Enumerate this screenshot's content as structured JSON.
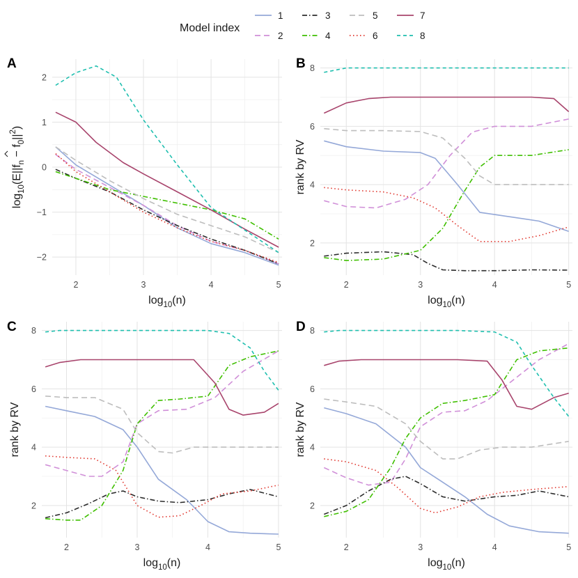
{
  "legend": {
    "title": "Model index",
    "items": [
      {
        "label": "1",
        "color": "#94a8d8",
        "dash": "solid"
      },
      {
        "label": "2",
        "color": "#d08fd8",
        "dash": "longdash"
      },
      {
        "label": "3",
        "color": "#2b2b2b",
        "dash": "dotdash"
      },
      {
        "label": "4",
        "color": "#3fbf00",
        "dash": "dotdash"
      },
      {
        "label": "5",
        "color": "#bdbdbd",
        "dash": "longdash"
      },
      {
        "label": "6",
        "color": "#e0332a",
        "dash": "dotted"
      },
      {
        "label": "7",
        "color": "#a8446c",
        "dash": "solid"
      },
      {
        "label": "8",
        "color": "#1fbfaf",
        "dash": "dashed"
      }
    ]
  },
  "chart_data": [
    {
      "tag": "A",
      "type": "line",
      "xlabel": "log10(n)",
      "ylabel": "log10(E||f̂n − f0||²)",
      "xlim": [
        1.65,
        5.05
      ],
      "ylim": [
        -2.4,
        2.4
      ],
      "xticks": [
        2,
        3,
        4,
        5
      ],
      "yticks": [
        -2,
        -1,
        0,
        1,
        2
      ],
      "grid": true,
      "series": [
        {
          "name": "1",
          "x": [
            1.7,
            2,
            2.5,
            3,
            3.5,
            4,
            4.5,
            5
          ],
          "y": [
            0.45,
            0.05,
            -0.4,
            -0.85,
            -1.35,
            -1.7,
            -1.9,
            -2.18
          ]
        },
        {
          "name": "2",
          "x": [
            1.7,
            2,
            2.5,
            3,
            3.5,
            4,
            4.5,
            5
          ],
          "y": [
            0.28,
            -0.05,
            -0.45,
            -0.85,
            -1.3,
            -1.65,
            -1.85,
            -2.15
          ]
        },
        {
          "name": "3",
          "x": [
            1.7,
            2,
            2.5,
            3,
            3.5,
            4,
            4.5,
            5
          ],
          "y": [
            -0.05,
            -0.25,
            -0.55,
            -0.95,
            -1.3,
            -1.6,
            -1.85,
            -2.15
          ]
        },
        {
          "name": "4",
          "x": [
            1.7,
            2,
            2.5,
            3,
            3.5,
            4,
            4.5,
            5
          ],
          "y": [
            -0.1,
            -0.25,
            -0.5,
            -0.65,
            -0.8,
            -0.95,
            -1.15,
            -1.6
          ]
        },
        {
          "name": "5",
          "x": [
            1.7,
            2,
            2.5,
            3,
            3.5,
            4,
            4.5,
            5
          ],
          "y": [
            0.45,
            0.15,
            -0.3,
            -0.7,
            -1.05,
            -1.3,
            -1.55,
            -1.9
          ]
        },
        {
          "name": "6",
          "x": [
            1.7,
            2,
            2.5,
            3,
            3.5,
            4,
            4.5,
            5
          ],
          "y": [
            0.3,
            -0.1,
            -0.55,
            -1.0,
            -1.35,
            -1.65,
            -1.85,
            -2.12
          ]
        },
        {
          "name": "7",
          "x": [
            1.7,
            2,
            2.3,
            2.7,
            3,
            3.5,
            4,
            4.5,
            5
          ],
          "y": [
            1.22,
            1.0,
            0.55,
            0.1,
            -0.15,
            -0.55,
            -0.95,
            -1.38,
            -1.78
          ]
        },
        {
          "name": "8",
          "x": [
            1.7,
            2,
            2.3,
            2.6,
            3,
            3.5,
            4,
            4.5,
            5
          ],
          "y": [
            1.82,
            2.1,
            2.25,
            2.0,
            1.05,
            0.05,
            -0.9,
            -1.4,
            -1.9
          ]
        }
      ]
    },
    {
      "tag": "B",
      "type": "line",
      "xlabel": "log10(n)",
      "ylabel": "rank by RV",
      "xlim": [
        1.65,
        5.05
      ],
      "ylim": [
        0.9,
        8.3
      ],
      "xticks": [
        2,
        3,
        4,
        5
      ],
      "yticks": [
        2,
        4,
        6,
        8
      ],
      "grid": true,
      "series": [
        {
          "name": "1",
          "x": [
            1.7,
            2,
            2.5,
            3,
            3.2,
            3.5,
            3.8,
            4.2,
            4.6,
            5
          ],
          "y": [
            5.5,
            5.3,
            5.15,
            5.1,
            4.9,
            4.0,
            3.05,
            2.9,
            2.75,
            2.4
          ]
        },
        {
          "name": "2",
          "x": [
            1.7,
            2,
            2.4,
            2.8,
            3.1,
            3.4,
            3.7,
            4,
            4.5,
            5
          ],
          "y": [
            3.45,
            3.25,
            3.2,
            3.5,
            4.0,
            5.0,
            5.8,
            6.0,
            6.0,
            6.25
          ]
        },
        {
          "name": "3",
          "x": [
            1.7,
            2,
            2.5,
            2.9,
            3.1,
            3.3,
            3.6,
            4,
            4.5,
            5
          ],
          "y": [
            1.55,
            1.65,
            1.7,
            1.6,
            1.3,
            1.08,
            1.05,
            1.05,
            1.08,
            1.07
          ]
        },
        {
          "name": "4",
          "x": [
            1.7,
            2,
            2.5,
            3,
            3.3,
            3.6,
            3.8,
            4,
            4.5,
            5
          ],
          "y": [
            1.5,
            1.4,
            1.45,
            1.75,
            2.5,
            3.8,
            4.6,
            5.0,
            5.0,
            5.2
          ]
        },
        {
          "name": "5",
          "x": [
            1.7,
            2,
            2.5,
            3,
            3.3,
            3.6,
            3.8,
            4,
            4.5,
            5
          ],
          "y": [
            5.92,
            5.85,
            5.85,
            5.82,
            5.6,
            4.9,
            4.3,
            4.0,
            4.0,
            4.0
          ]
        },
        {
          "name": "6",
          "x": [
            1.7,
            2,
            2.5,
            2.9,
            3.2,
            3.5,
            3.8,
            4.2,
            4.6,
            5
          ],
          "y": [
            3.9,
            3.82,
            3.75,
            3.55,
            3.2,
            2.6,
            2.05,
            2.05,
            2.25,
            2.55
          ]
        },
        {
          "name": "7",
          "x": [
            1.7,
            2,
            2.3,
            2.6,
            3,
            3.5,
            4,
            4.5,
            4.8,
            5
          ],
          "y": [
            6.45,
            6.8,
            6.95,
            7.0,
            7.0,
            7.0,
            7.0,
            7.0,
            6.95,
            6.5
          ]
        },
        {
          "name": "8",
          "x": [
            1.7,
            1.9,
            2,
            2.5,
            3,
            3.5,
            4,
            4.5,
            5
          ],
          "y": [
            7.85,
            7.95,
            8.0,
            8.0,
            8.0,
            8.0,
            8.0,
            8.0,
            8.0
          ]
        }
      ]
    },
    {
      "tag": "C",
      "type": "line",
      "xlabel": "log10(n)",
      "ylabel": "rank by RV",
      "xlim": [
        1.65,
        5.05
      ],
      "ylim": [
        0.9,
        8.3
      ],
      "xticks": [
        2,
        3,
        4,
        5
      ],
      "yticks": [
        2,
        4,
        6,
        8
      ],
      "grid": true,
      "series": [
        {
          "name": "1",
          "x": [
            1.7,
            2,
            2.4,
            2.8,
            3,
            3.3,
            3.7,
            4,
            4.3,
            4.6,
            5
          ],
          "y": [
            5.4,
            5.25,
            5.05,
            4.6,
            4.0,
            2.9,
            2.2,
            1.45,
            1.1,
            1.05,
            1.02
          ]
        },
        {
          "name": "2",
          "x": [
            1.7,
            2,
            2.3,
            2.5,
            2.8,
            3,
            3.3,
            3.7,
            4.1,
            4.5,
            5
          ],
          "y": [
            3.4,
            3.2,
            3.0,
            3.0,
            3.5,
            4.8,
            5.25,
            5.3,
            5.7,
            6.6,
            7.3
          ]
        },
        {
          "name": "3",
          "x": [
            1.7,
            2,
            2.3,
            2.6,
            2.8,
            3,
            3.3,
            3.6,
            4,
            4.3,
            4.6,
            5
          ],
          "y": [
            1.58,
            1.75,
            2.05,
            2.4,
            2.5,
            2.3,
            2.15,
            2.1,
            2.2,
            2.4,
            2.55,
            2.3
          ]
        },
        {
          "name": "4",
          "x": [
            1.7,
            2,
            2.2,
            2.5,
            2.8,
            3,
            3.3,
            3.6,
            4,
            4.3,
            4.6,
            5
          ],
          "y": [
            1.55,
            1.5,
            1.5,
            2.0,
            3.2,
            4.8,
            5.6,
            5.65,
            5.75,
            6.8,
            7.1,
            7.3
          ]
        },
        {
          "name": "5",
          "x": [
            1.7,
            2,
            2.4,
            2.8,
            3,
            3.3,
            3.5,
            3.8,
            4.2,
            4.6,
            5
          ],
          "y": [
            5.75,
            5.7,
            5.7,
            5.3,
            4.5,
            3.85,
            3.8,
            4.0,
            4.0,
            4.0,
            4.0
          ]
        },
        {
          "name": "6",
          "x": [
            1.7,
            2,
            2.4,
            2.7,
            3,
            3.3,
            3.6,
            3.9,
            4.2,
            4.6,
            5
          ],
          "y": [
            3.7,
            3.65,
            3.6,
            3.2,
            2.0,
            1.6,
            1.65,
            2.0,
            2.4,
            2.5,
            2.7
          ]
        },
        {
          "name": "7",
          "x": [
            1.7,
            1.9,
            2.2,
            2.6,
            3,
            3.5,
            3.8,
            4.1,
            4.3,
            4.5,
            4.8,
            5
          ],
          "y": [
            6.75,
            6.9,
            7.0,
            7.0,
            7.0,
            7.0,
            7.0,
            6.2,
            5.3,
            5.1,
            5.2,
            5.5
          ]
        },
        {
          "name": "8",
          "x": [
            1.7,
            1.9,
            2.2,
            2.6,
            3,
            3.5,
            4,
            4.3,
            4.6,
            4.8,
            5
          ],
          "y": [
            7.95,
            8.0,
            8.0,
            8.0,
            8.0,
            8.0,
            8.0,
            7.9,
            7.4,
            6.6,
            5.95
          ]
        }
      ]
    },
    {
      "tag": "D",
      "type": "line",
      "xlabel": "log10(n)",
      "ylabel": "rank by RV",
      "xlim": [
        1.65,
        5.05
      ],
      "ylim": [
        0.9,
        8.3
      ],
      "xticks": [
        2,
        3,
        4,
        5
      ],
      "yticks": [
        2,
        4,
        6,
        8
      ],
      "grid": true,
      "series": [
        {
          "name": "1",
          "x": [
            1.7,
            2,
            2.4,
            2.8,
            3,
            3.3,
            3.6,
            3.9,
            4.2,
            4.6,
            5
          ],
          "y": [
            5.35,
            5.15,
            4.8,
            4.0,
            3.3,
            2.8,
            2.3,
            1.7,
            1.3,
            1.1,
            1.05
          ]
        },
        {
          "name": "2",
          "x": [
            1.7,
            2,
            2.3,
            2.6,
            2.8,
            3,
            3.3,
            3.6,
            3.9,
            4.2,
            4.6,
            5
          ],
          "y": [
            3.3,
            2.95,
            2.7,
            2.8,
            3.6,
            4.7,
            5.2,
            5.25,
            5.6,
            6.2,
            7.0,
            7.55
          ]
        },
        {
          "name": "3",
          "x": [
            1.7,
            2,
            2.3,
            2.6,
            2.8,
            3,
            3.3,
            3.6,
            4,
            4.3,
            4.6,
            4.8,
            5
          ],
          "y": [
            1.7,
            2.0,
            2.5,
            2.9,
            3.0,
            2.75,
            2.3,
            2.15,
            2.3,
            2.35,
            2.5,
            2.4,
            2.3
          ]
        },
        {
          "name": "4",
          "x": [
            1.7,
            2,
            2.3,
            2.6,
            2.8,
            3,
            3.3,
            3.6,
            4,
            4.3,
            4.6,
            5
          ],
          "y": [
            1.62,
            1.8,
            2.2,
            3.3,
            4.3,
            5.0,
            5.5,
            5.6,
            5.8,
            7.0,
            7.3,
            7.4
          ]
        },
        {
          "name": "5",
          "x": [
            1.7,
            2,
            2.4,
            2.8,
            3,
            3.3,
            3.5,
            3.8,
            4.1,
            4.5,
            5
          ],
          "y": [
            5.65,
            5.55,
            5.4,
            4.8,
            4.2,
            3.6,
            3.6,
            3.9,
            4.0,
            4.0,
            4.2
          ]
        },
        {
          "name": "6",
          "x": [
            1.7,
            2,
            2.4,
            2.7,
            3,
            3.2,
            3.5,
            3.8,
            4.1,
            4.5,
            5
          ],
          "y": [
            3.6,
            3.5,
            3.2,
            2.6,
            1.9,
            1.75,
            1.95,
            2.3,
            2.45,
            2.55,
            2.65
          ]
        },
        {
          "name": "7",
          "x": [
            1.7,
            1.9,
            2.2,
            2.6,
            3,
            3.5,
            3.9,
            4.1,
            4.3,
            4.5,
            4.8,
            5
          ],
          "y": [
            6.8,
            6.95,
            7.0,
            7.0,
            7.0,
            7.0,
            6.95,
            6.3,
            5.4,
            5.3,
            5.7,
            5.85
          ]
        },
        {
          "name": "8",
          "x": [
            1.7,
            1.9,
            2.2,
            2.6,
            3,
            3.5,
            4,
            4.3,
            4.5,
            4.8,
            5
          ],
          "y": [
            7.95,
            8.0,
            8.0,
            8.0,
            8.0,
            8.0,
            7.95,
            7.6,
            6.8,
            5.7,
            5.05
          ]
        }
      ]
    }
  ]
}
